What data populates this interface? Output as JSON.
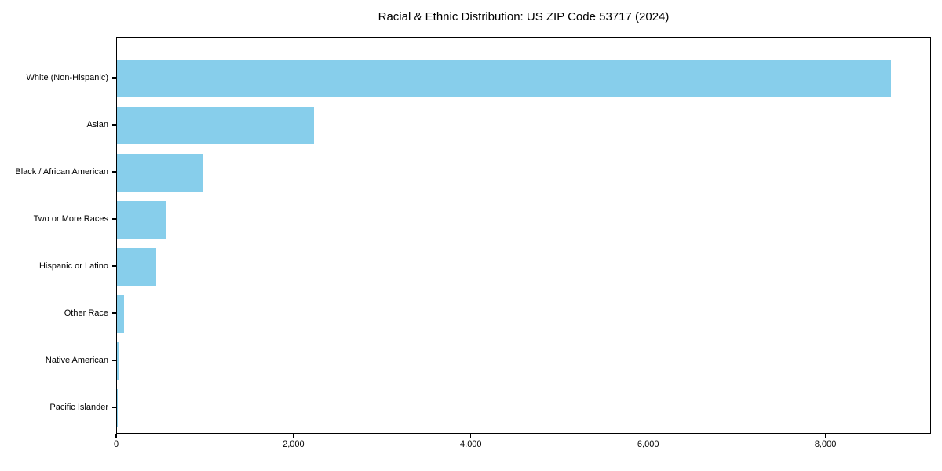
{
  "chart_data": {
    "type": "bar",
    "orientation": "horizontal",
    "title": "Racial & Ethnic Distribution: US ZIP Code 53717 (2024)",
    "categories": [
      "White (Non-Hispanic)",
      "Asian",
      "Black / African American",
      "Two or More Races",
      "Hispanic or Latino",
      "Other Race",
      "Native American",
      "Pacific Islander"
    ],
    "values": [
      8750,
      2230,
      975,
      550,
      445,
      80,
      30,
      5
    ],
    "xlabel": "",
    "ylabel": "",
    "xlim": [
      0,
      9190
    ],
    "xticks": [
      0,
      2000,
      4000,
      6000,
      8000
    ],
    "xtick_labels": [
      "0",
      "2,000",
      "4,000",
      "6,000",
      "8,000"
    ],
    "bar_color": "#87CEEB",
    "grid": false,
    "legend": null,
    "frame": "full-box"
  }
}
